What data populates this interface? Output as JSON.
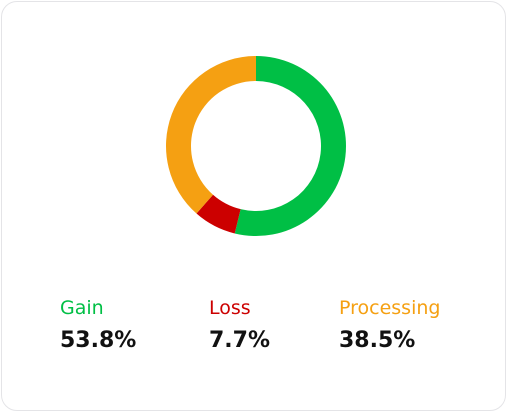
{
  "chart_data": {
    "type": "pie",
    "style": "donut",
    "categories": [
      "Gain",
      "Loss",
      "Processing"
    ],
    "values": [
      53.8,
      7.7,
      38.5
    ],
    "colors": [
      "#00bf45",
      "#cc0000",
      "#f5a012"
    ],
    "value_labels": [
      "53.8%",
      "7.7%",
      "38.5%"
    ],
    "start_angle_deg": 0,
    "direction": "clockwise",
    "legend_position": "bottom"
  }
}
